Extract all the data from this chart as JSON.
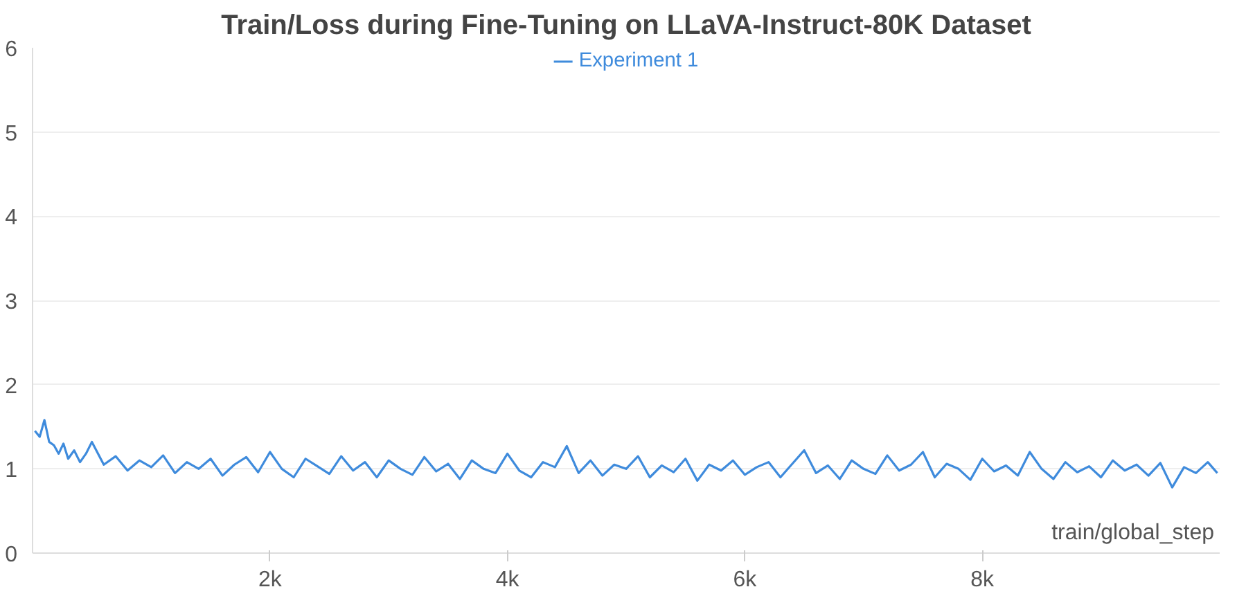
{
  "chart_data": {
    "type": "line",
    "title": "Train/Loss during Fine-Tuning on LLaVA-Instruct-80K Dataset",
    "xlabel": "train/global_step",
    "x": [
      20,
      60,
      100,
      140,
      180,
      220,
      260,
      300,
      350,
      400,
      450,
      500,
      600,
      700,
      800,
      900,
      1000,
      1100,
      1200,
      1300,
      1400,
      1500,
      1600,
      1700,
      1800,
      1900,
      2000,
      2100,
      2200,
      2300,
      2400,
      2500,
      2600,
      2700,
      2800,
      2900,
      3000,
      3100,
      3200,
      3300,
      3400,
      3500,
      3600,
      3700,
      3800,
      3900,
      4000,
      4100,
      4200,
      4300,
      4400,
      4500,
      4600,
      4700,
      4800,
      4900,
      5000,
      5100,
      5200,
      5300,
      5400,
      5500,
      5600,
      5700,
      5800,
      5900,
      6000,
      6100,
      6200,
      6300,
      6400,
      6500,
      6600,
      6700,
      6800,
      6900,
      7000,
      7100,
      7200,
      7300,
      7400,
      7500,
      7600,
      7700,
      7800,
      7900,
      8000,
      8100,
      8200,
      8300,
      8400,
      8500,
      8600,
      8700,
      8800,
      8900,
      9000,
      9100,
      9200,
      9300,
      9400,
      9500,
      9600,
      9700,
      9800,
      9900,
      9980
    ],
    "series": [
      {
        "name": "Experiment 1",
        "color": "#3f8bdc",
        "values": [
          1.45,
          1.38,
          1.58,
          1.32,
          1.28,
          1.18,
          1.3,
          1.12,
          1.22,
          1.08,
          1.18,
          1.32,
          1.05,
          1.15,
          0.98,
          1.1,
          1.02,
          1.16,
          0.95,
          1.08,
          1.0,
          1.12,
          0.92,
          1.05,
          1.14,
          0.96,
          1.2,
          1.0,
          0.9,
          1.12,
          1.03,
          0.94,
          1.15,
          0.98,
          1.08,
          0.9,
          1.1,
          1.0,
          0.93,
          1.14,
          0.97,
          1.06,
          0.88,
          1.1,
          1.0,
          0.95,
          1.18,
          0.98,
          0.9,
          1.08,
          1.02,
          1.27,
          0.95,
          1.1,
          0.92,
          1.05,
          1.0,
          1.15,
          0.9,
          1.04,
          0.96,
          1.12,
          0.86,
          1.05,
          0.98,
          1.1,
          0.93,
          1.02,
          1.08,
          0.9,
          1.06,
          1.22,
          0.95,
          1.04,
          0.88,
          1.1,
          1.0,
          0.94,
          1.16,
          0.98,
          1.05,
          1.2,
          0.9,
          1.06,
          1.0,
          0.87,
          1.12,
          0.97,
          1.04,
          0.92,
          1.2,
          1.0,
          0.88,
          1.08,
          0.96,
          1.03,
          0.9,
          1.1,
          0.98,
          1.05,
          0.92,
          1.07,
          0.78,
          1.02,
          0.95,
          1.08,
          0.95
        ]
      }
    ],
    "xlim": [
      0,
      10000
    ],
    "ylim": [
      0,
      6
    ],
    "xticks": [
      {
        "value": 2000,
        "label": "2k"
      },
      {
        "value": 4000,
        "label": "4k"
      },
      {
        "value": 6000,
        "label": "6k"
      },
      {
        "value": 8000,
        "label": "8k"
      }
    ],
    "yticks": [
      0,
      1,
      2,
      3,
      4,
      5,
      6
    ],
    "grid": "y",
    "legend": "top",
    "line_style": "solid",
    "marker": "none"
  }
}
